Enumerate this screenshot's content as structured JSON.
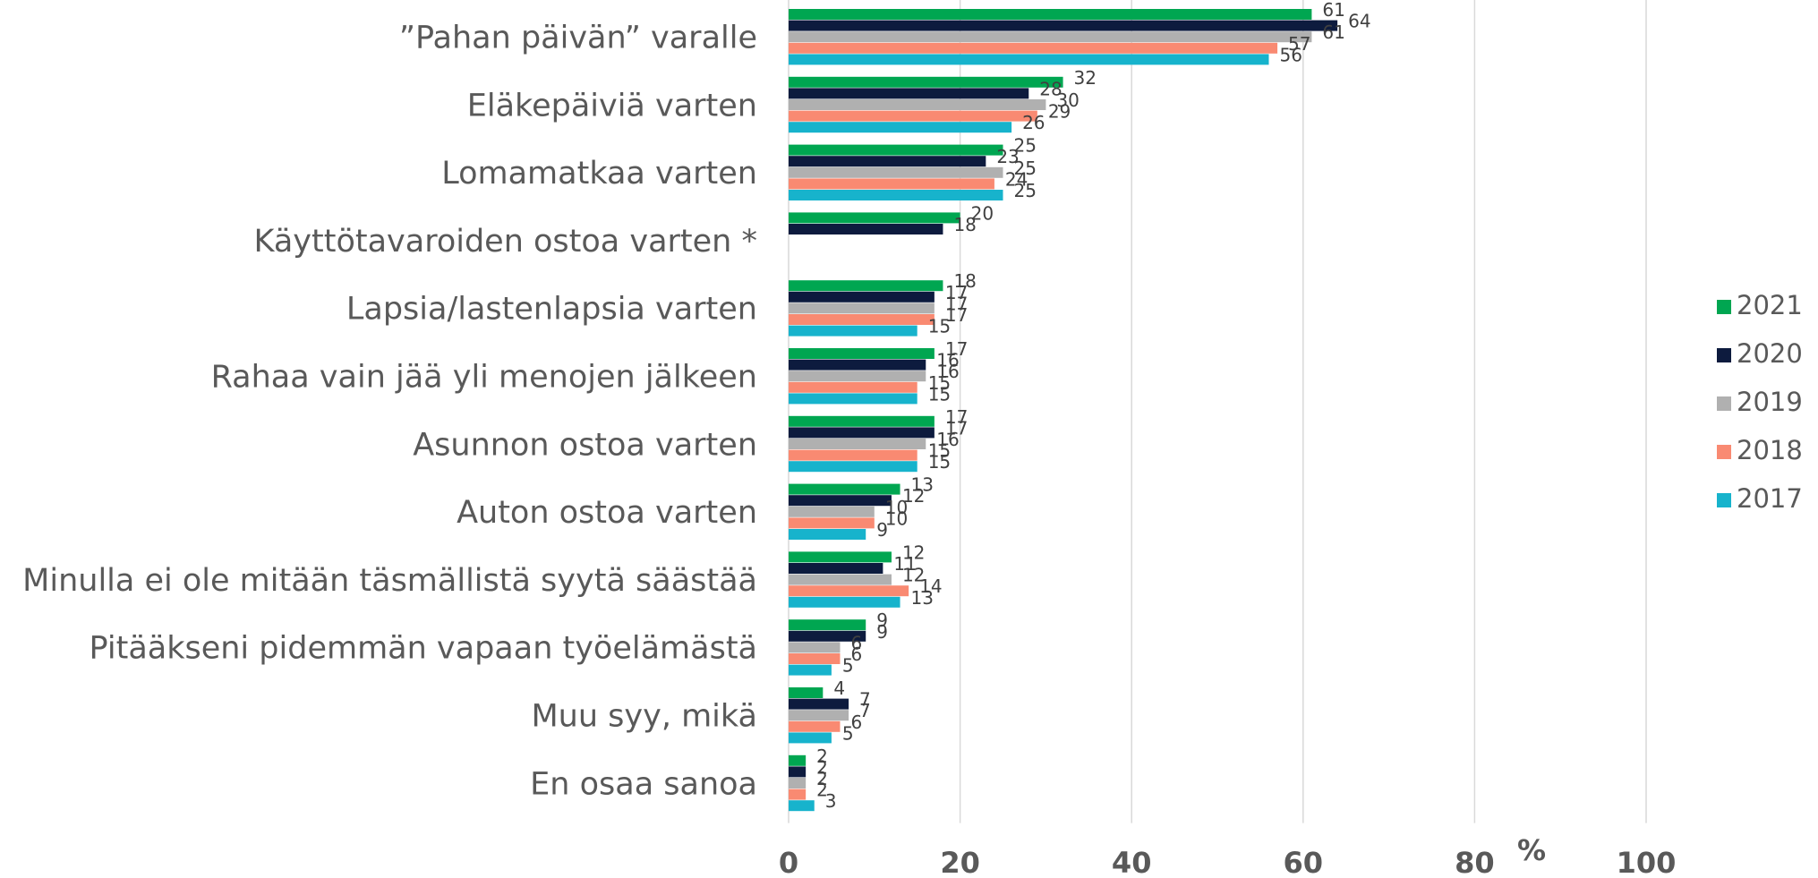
{
  "chart_data": {
    "type": "hbar",
    "categories": [
      "”Pahan päivän” varalle",
      "Eläkepäiviä varten",
      "Lomamatkaa varten",
      "Käyttötavaroiden ostoa varten *",
      "Lapsia/lastenlapsia varten",
      "Rahaa vain jää yli menojen jälkeen",
      "Asunnon ostoa varten",
      "Auton ostoa varten",
      "Minulla ei ole mitään täsmällistä syytä säästää",
      "Pitääkseni pidemmän vapaan työelämästä",
      "Muu syy, mikä",
      "En osaa sanoa"
    ],
    "series": [
      {
        "name": "2021",
        "color": "#00a651",
        "values": [
          61,
          32,
          25,
          20,
          18,
          17,
          17,
          13,
          12,
          9,
          4,
          2
        ]
      },
      {
        "name": "2020",
        "color": "#0d1b3e",
        "values": [
          64,
          28,
          23,
          18,
          17,
          16,
          17,
          12,
          11,
          9,
          7,
          2
        ]
      },
      {
        "name": "2019",
        "color": "#b0b0b0",
        "values": [
          61,
          30,
          25,
          null,
          17,
          16,
          16,
          10,
          12,
          6,
          7,
          2
        ]
      },
      {
        "name": "2018",
        "color": "#f98a72",
        "values": [
          57,
          29,
          24,
          null,
          17,
          15,
          15,
          10,
          14,
          6,
          6,
          2
        ]
      },
      {
        "name": "2017",
        "color": "#17b3cc",
        "values": [
          56,
          26,
          25,
          null,
          15,
          15,
          15,
          9,
          13,
          5,
          5,
          3
        ]
      }
    ],
    "xlabel": "%",
    "xlim": [
      0,
      100
    ],
    "xticks": [
      0,
      20,
      40,
      60,
      80,
      100
    ],
    "grid": true,
    "legend": "right"
  }
}
